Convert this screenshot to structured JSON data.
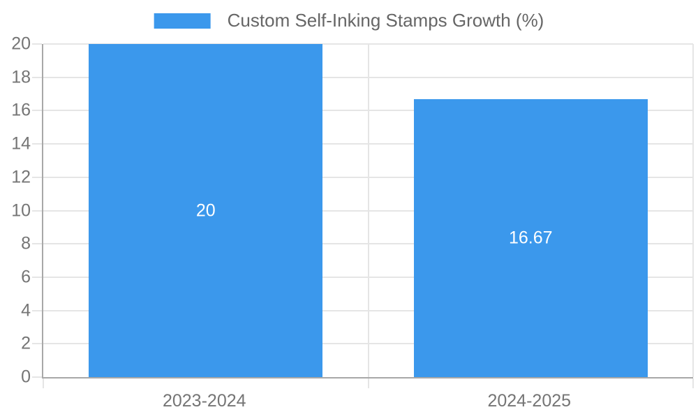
{
  "legend": {
    "label": "Custom Self-Inking Stamps Growth (%)"
  },
  "chart_data": {
    "type": "bar",
    "title": "Custom Self-Inking Stamps Growth (%)",
    "categories": [
      "2023-2024",
      "2024-2025"
    ],
    "values": [
      20,
      16.67
    ],
    "value_labels": [
      "20",
      "16.67"
    ],
    "series": [
      {
        "name": "Custom Self-Inking Stamps Growth (%)",
        "values": [
          20,
          16.67
        ]
      }
    ],
    "xlabel": "",
    "ylabel": "",
    "ylim": [
      0,
      20
    ],
    "yticks": [
      0,
      2,
      4,
      6,
      8,
      10,
      12,
      14,
      16,
      18,
      20
    ],
    "grid": true,
    "legend_position": "top-center",
    "bar_width_fraction": 0.36,
    "bar_labels_inside": true
  },
  "colors": {
    "bar": "#3b98ec",
    "grid": "#e5e5e5",
    "axis": "#a8a8a8",
    "tick_text": "#757575",
    "legend_text": "#666666",
    "bar_label": "#ffffff",
    "background": "#ffffff"
  }
}
